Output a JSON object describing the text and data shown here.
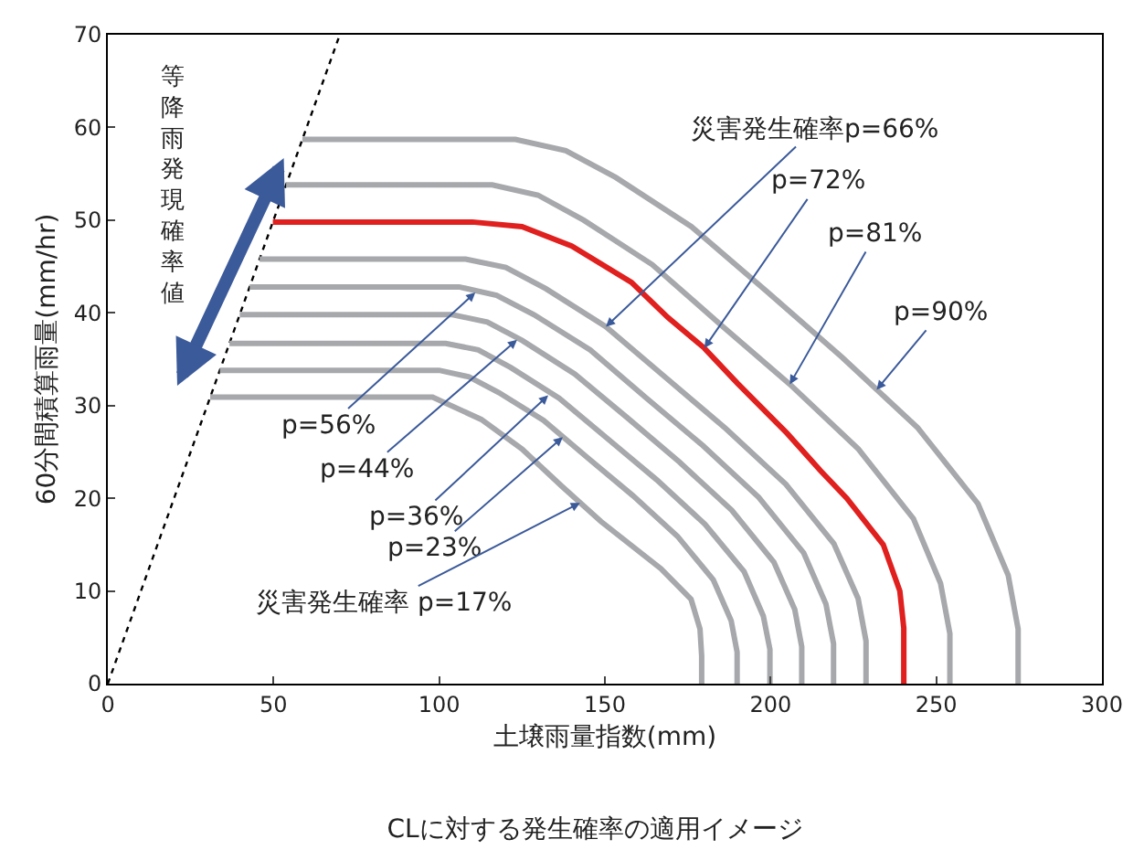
{
  "chart_data": {
    "type": "line",
    "title": "CLに対する発生確率の適用イメージ",
    "xlabel": "土壌雨量指数(mm)",
    "ylabel": "60分間積算雨量(mm/hr)",
    "xlim": [
      0,
      300
    ],
    "xticks": [
      0,
      50,
      100,
      150,
      200,
      250,
      300
    ],
    "ylim": [
      0,
      70
    ],
    "yticks": [
      0,
      10,
      20,
      30,
      40,
      50,
      60,
      70
    ],
    "marker": "none",
    "series": [
      {
        "color": "#000000",
        "line_style": "dotted",
        "x": [
          0,
          70
        ],
        "values": [
          0,
          70
        ]
      },
      {
        "color": "#a6a8ab",
        "x": [
          30.9,
          98,
          112.7,
          125,
          137,
          148.8,
          166.9,
          176,
          178.7,
          179.2,
          179.2
        ],
        "values": [
          30.9,
          30.9,
          28.5,
          25.3,
          21.3,
          17.5,
          12.4,
          9.1,
          5.9,
          3,
          0
        ]
      },
      {
        "color": "#a6a8ab",
        "x": [
          33.8,
          100,
          109,
          118,
          131.5,
          145,
          158.4,
          171.9,
          182.7,
          188.1,
          189.9,
          189.9
        ],
        "values": [
          33.8,
          33.8,
          33.1,
          31.4,
          28.4,
          24.3,
          20.3,
          15.9,
          11.2,
          6.8,
          3.4,
          0
        ]
      },
      {
        "color": "#a6a8ab",
        "x": [
          36.7,
          102,
          111.8,
          121.6,
          136.2,
          150.9,
          165.6,
          180.2,
          192,
          197.8,
          199.8,
          199.8
        ],
        "values": [
          36.7,
          36.7,
          36,
          34.1,
          30.8,
          26.4,
          22,
          17.2,
          12.1,
          7.3,
          3.7,
          0
        ]
      },
      {
        "color": "#a6a8ab",
        "x": [
          39.8,
          104,
          114.5,
          125.1,
          140.9,
          156.7,
          172.5,
          188.3,
          201,
          207.3,
          209.4,
          209.4
        ],
        "values": [
          39.8,
          39.8,
          39,
          37,
          33.4,
          28.7,
          23.9,
          18.7,
          13.1,
          8,
          4,
          0
        ]
      },
      {
        "color": "#a6a8ab",
        "x": [
          42.8,
          106,
          117.3,
          128.6,
          145.6,
          162.5,
          179.5,
          196.4,
          210,
          216.7,
          219,
          219
        ],
        "values": [
          42.8,
          42.8,
          41.9,
          39.8,
          36,
          30.8,
          25.7,
          20.1,
          14.1,
          8.6,
          4.3,
          0
        ]
      },
      {
        "color": "#a6a8ab",
        "x": [
          45.8,
          108,
          120.1,
          132.2,
          150.3,
          168.4,
          186.5,
          204.6,
          219.1,
          226.4,
          228.8,
          228.8
        ],
        "values": [
          45.8,
          45.8,
          44.9,
          42.6,
          38.5,
          33,
          27.5,
          21.5,
          15.1,
          9.2,
          4.6,
          0
        ]
      },
      {
        "color": "#e0201e",
        "x": [
          49.8,
          110,
          125,
          140,
          158,
          169,
          180,
          190,
          205,
          215,
          223,
          234,
          239,
          240.2,
          240.2
        ],
        "values": [
          49.8,
          49.8,
          49.3,
          47.2,
          43.3,
          39.5,
          36.2,
          32.4,
          27,
          23,
          20,
          15,
          10,
          6,
          0
        ]
      },
      {
        "color": "#a6a8ab",
        "x": [
          53.8,
          116,
          129.8,
          143.6,
          164.3,
          185,
          205.8,
          226.5,
          243.1,
          251.3,
          254.1,
          254.1
        ],
        "values": [
          53.8,
          53.8,
          52.7,
          50,
          45.2,
          38.7,
          32.3,
          25.3,
          17.8,
          10.8,
          5.4,
          0
        ]
      },
      {
        "color": "#a6a8ab",
        "x": [
          58.7,
          123,
          138.2,
          153.3,
          176.1,
          198.9,
          221.6,
          244.4,
          262.6,
          271.7,
          274.7,
          274.7
        ],
        "values": [
          58.7,
          58.7,
          57.5,
          54.6,
          49.3,
          42.3,
          35.2,
          27.6,
          19.4,
          11.7,
          5.9,
          0
        ]
      }
    ],
    "annotations": [
      "等降雨発現確率値",
      {
        "text": "災害発生確率p=66%",
        "x": 150.3,
        "y": 38.5
      },
      {
        "text": "p=72%",
        "x": 180,
        "y": 36.2
      },
      {
        "text": "p=81%",
        "x": 205.8,
        "y": 32.3
      },
      {
        "text": "p=90%",
        "x": 232,
        "y": 31.7
      },
      {
        "text": "p=56%",
        "x": 110.9,
        "y": 42.2
      },
      {
        "text": "p=44%",
        "x": 123.5,
        "y": 37.1
      },
      {
        "text": "p=36%",
        "x": 132.9,
        "y": 31.1
      },
      {
        "text": "p=23%",
        "x": 137.3,
        "y": 26.6
      },
      {
        "text": "災害発生確率 p=17%",
        "x": 142.5,
        "y": 19.5
      }
    ]
  }
}
